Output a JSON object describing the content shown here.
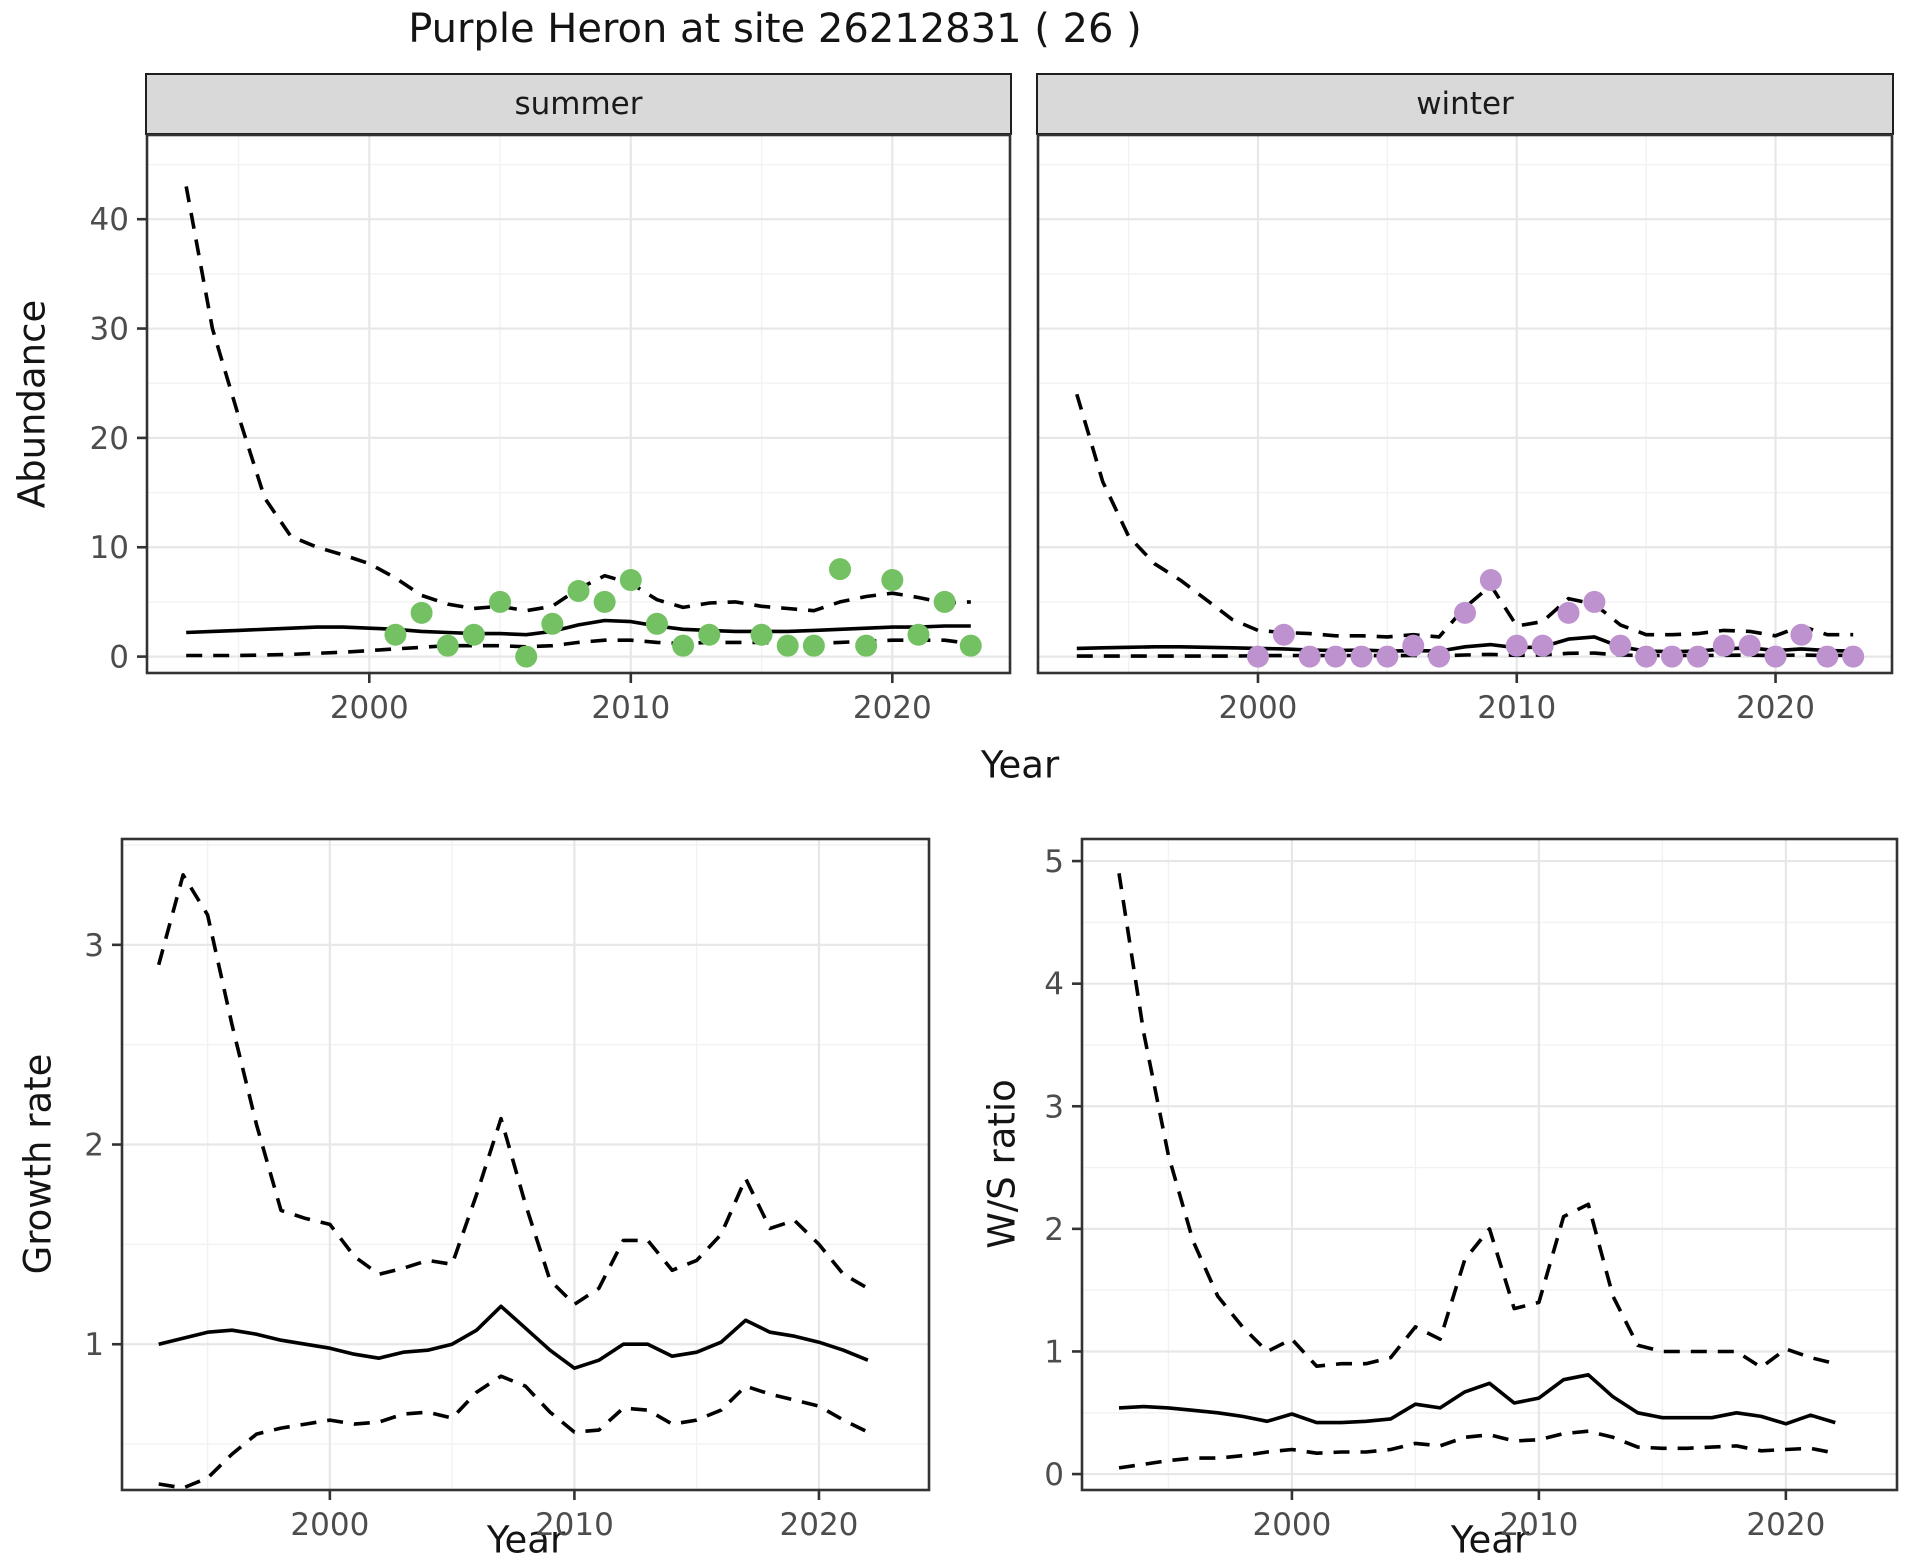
{
  "page": {
    "title": "Purple Heron at site 26212831 ( 26 )"
  },
  "colors": {
    "summer_points": "#74c163",
    "winter_points": "#bd92cf",
    "line": "#000000",
    "grid_major": "#e7e7e7",
    "grid_minor": "#f2f2f2",
    "strip_fill": "#d9d9d9",
    "panel_border": "#333333",
    "tick_color": "#333333",
    "tick_label": "#4d4d4d",
    "text": "#141414"
  },
  "facets": {
    "summer": "summer",
    "winter": "winter"
  },
  "axis_titles": {
    "abundance": "Abundance",
    "year_top": "Year",
    "growth_rate": "Growth rate",
    "year_bottom_left": "Year",
    "ws_ratio": "W/S ratio",
    "year_bottom_right": "Year"
  },
  "chart_data": [
    {
      "type": "line",
      "facet": "summer",
      "title": "summer",
      "xlabel": "Year",
      "ylabel": "Abundance",
      "xlim": [
        1991.5,
        2024.5
      ],
      "ylim": [
        -1.5,
        47.7
      ],
      "xticks": [
        2000,
        2010,
        2020
      ],
      "yticks": [
        0,
        10,
        20,
        30,
        40
      ],
      "grid": true,
      "x": [
        1993,
        1994,
        1995,
        1996,
        1997,
        1998,
        1999,
        2000,
        2001,
        2002,
        2003,
        2004,
        2005,
        2006,
        2007,
        2008,
        2009,
        2010,
        2011,
        2012,
        2013,
        2014,
        2015,
        2016,
        2017,
        2018,
        2019,
        2020,
        2021,
        2022,
        2023
      ],
      "series": [
        {
          "name": "upper-95ci",
          "style": "dashed",
          "values": [
            43,
            30,
            22,
            14.5,
            11,
            10,
            9.3,
            8.5,
            7.2,
            5.6,
            4.8,
            4.4,
            4.6,
            4.2,
            4.6,
            6.2,
            7.4,
            6.7,
            5.2,
            4.5,
            4.9,
            5.0,
            4.6,
            4.4,
            4.2,
            5.0,
            5.5,
            5.8,
            5.4,
            4.9,
            5.0
          ]
        },
        {
          "name": "median",
          "style": "solid",
          "values": [
            2.2,
            2.3,
            2.4,
            2.5,
            2.6,
            2.7,
            2.7,
            2.6,
            2.5,
            2.3,
            2.2,
            2.1,
            2.1,
            2.0,
            2.3,
            2.9,
            3.3,
            3.2,
            2.8,
            2.5,
            2.4,
            2.3,
            2.3,
            2.3,
            2.4,
            2.5,
            2.6,
            2.7,
            2.7,
            2.8,
            2.8
          ]
        },
        {
          "name": "lower-95ci",
          "style": "dashed",
          "values": [
            0.1,
            0.1,
            0.1,
            0.15,
            0.2,
            0.3,
            0.4,
            0.55,
            0.7,
            0.85,
            1.0,
            1.0,
            1.0,
            0.9,
            1.0,
            1.3,
            1.5,
            1.5,
            1.3,
            1.2,
            1.3,
            1.3,
            1.3,
            1.2,
            1.2,
            1.3,
            1.4,
            1.5,
            1.5,
            1.5,
            1.2
          ]
        }
      ],
      "points": {
        "name": "observed-abundance-summer",
        "color": "#74c163",
        "x": [
          2001,
          2002,
          2003,
          2004,
          2005,
          2006,
          2007,
          2008,
          2009,
          2010,
          2011,
          2012,
          2013,
          2015,
          2016,
          2017,
          2018,
          2019,
          2020,
          2021,
          2022,
          2023
        ],
        "y": [
          2,
          4,
          1,
          2,
          5,
          0,
          3,
          6,
          5,
          7,
          3,
          1,
          2,
          2,
          1,
          1,
          8,
          1,
          7,
          2,
          5,
          1
        ]
      }
    },
    {
      "type": "line",
      "facet": "winter",
      "title": "winter",
      "xlabel": "Year",
      "ylabel": "Abundance",
      "xlim": [
        1991.5,
        2024.5
      ],
      "ylim": [
        -1.5,
        47.7
      ],
      "xticks": [
        2000,
        2010,
        2020
      ],
      "yticks": [
        0,
        10,
        20,
        30,
        40
      ],
      "grid": true,
      "x": [
        1993,
        1994,
        1995,
        1996,
        1997,
        1998,
        1999,
        2000,
        2001,
        2002,
        2003,
        2004,
        2005,
        2006,
        2007,
        2008,
        2009,
        2010,
        2011,
        2012,
        2013,
        2014,
        2015,
        2016,
        2017,
        2018,
        2019,
        2020,
        2021,
        2022,
        2023
      ],
      "series": [
        {
          "name": "upper-95ci",
          "style": "dashed",
          "values": [
            24,
            16,
            11,
            8.5,
            7,
            5.2,
            3.4,
            2.4,
            2.2,
            2.1,
            1.9,
            1.9,
            1.8,
            2.0,
            1.8,
            4.5,
            6.5,
            2.8,
            3.2,
            5.3,
            4.8,
            2.9,
            2.0,
            2.0,
            2.1,
            2.4,
            2.3,
            1.9,
            2.8,
            2.0,
            2.0
          ]
        },
        {
          "name": "median",
          "style": "solid",
          "values": [
            0.75,
            0.8,
            0.85,
            0.9,
            0.9,
            0.85,
            0.8,
            0.75,
            0.7,
            0.6,
            0.55,
            0.6,
            0.5,
            0.55,
            0.5,
            0.9,
            1.1,
            0.8,
            0.9,
            1.6,
            1.8,
            0.9,
            0.5,
            0.45,
            0.5,
            0.7,
            0.8,
            0.55,
            0.7,
            0.55,
            0.5
          ]
        },
        {
          "name": "lower-95ci",
          "style": "dashed",
          "values": [
            0.05,
            0.05,
            0.05,
            0.05,
            0.05,
            0.05,
            0.05,
            0.08,
            0.1,
            0.1,
            0.1,
            0.1,
            0.08,
            0.1,
            0.08,
            0.15,
            0.2,
            0.12,
            0.15,
            0.3,
            0.32,
            0.15,
            0.1,
            0.1,
            0.1,
            0.12,
            0.13,
            0.1,
            0.15,
            0.1,
            0.13
          ]
        }
      ],
      "points": {
        "name": "observed-abundance-winter",
        "color": "#bd92cf",
        "x": [
          2000,
          2001,
          2002,
          2003,
          2004,
          2005,
          2006,
          2007,
          2008,
          2009,
          2010,
          2011,
          2012,
          2013,
          2014,
          2015,
          2016,
          2017,
          2018,
          2019,
          2020,
          2021,
          2022,
          2023
        ],
        "y": [
          0,
          2,
          0,
          0,
          0,
          0,
          1,
          0,
          4,
          7,
          1,
          1,
          4,
          5,
          1,
          0,
          0,
          0,
          1,
          1,
          0,
          2,
          0,
          0
        ]
      }
    },
    {
      "type": "line",
      "facet": null,
      "title": "Growth rate",
      "xlabel": "Year",
      "ylabel": "Growth rate",
      "xlim": [
        1991.5,
        2024.5
      ],
      "ylim": [
        0.27,
        3.53
      ],
      "xticks": [
        2000,
        2010,
        2020
      ],
      "yticks": [
        1,
        2,
        3
      ],
      "grid": true,
      "x": [
        1993,
        1994,
        1995,
        1996,
        1997,
        1998,
        1999,
        2000,
        2001,
        2002,
        2003,
        2004,
        2005,
        2006,
        2007,
        2008,
        2009,
        2010,
        2011,
        2012,
        2013,
        2014,
        2015,
        2016,
        2017,
        2018,
        2019,
        2020,
        2021,
        2022
      ],
      "series": [
        {
          "name": "upper-95ci",
          "style": "dashed",
          "values": [
            2.9,
            3.35,
            3.15,
            2.6,
            2.1,
            1.67,
            1.63,
            1.6,
            1.44,
            1.35,
            1.38,
            1.42,
            1.4,
            1.75,
            2.13,
            1.7,
            1.32,
            1.2,
            1.28,
            1.52,
            1.52,
            1.37,
            1.42,
            1.55,
            1.83,
            1.58,
            1.62,
            1.5,
            1.35,
            1.28
          ]
        },
        {
          "name": "median",
          "style": "solid",
          "values": [
            1.0,
            1.03,
            1.06,
            1.07,
            1.05,
            1.02,
            1.0,
            0.98,
            0.95,
            0.93,
            0.96,
            0.97,
            1.0,
            1.07,
            1.19,
            1.08,
            0.97,
            0.88,
            0.92,
            1.0,
            1.0,
            0.94,
            0.96,
            1.01,
            1.12,
            1.06,
            1.04,
            1.01,
            0.97,
            0.92
          ]
        },
        {
          "name": "lower-95ci",
          "style": "dashed",
          "values": [
            0.3,
            0.28,
            0.33,
            0.45,
            0.55,
            0.58,
            0.6,
            0.62,
            0.6,
            0.61,
            0.65,
            0.66,
            0.63,
            0.76,
            0.84,
            0.79,
            0.66,
            0.56,
            0.57,
            0.68,
            0.67,
            0.6,
            0.62,
            0.67,
            0.79,
            0.75,
            0.72,
            0.69,
            0.62,
            0.56
          ]
        }
      ],
      "points": null
    },
    {
      "type": "line",
      "facet": null,
      "title": "W/S ratio",
      "xlabel": "Year",
      "ylabel": "W/S ratio",
      "xlim": [
        1991.5,
        2024.5
      ],
      "ylim": [
        -0.13,
        5.18
      ],
      "xticks": [
        2000,
        2010,
        2020
      ],
      "yticks": [
        0,
        1,
        2,
        3,
        4,
        5
      ],
      "grid": true,
      "x": [
        1993,
        1994,
        1995,
        1996,
        1997,
        1998,
        1999,
        2000,
        2001,
        2002,
        2003,
        2004,
        2005,
        2006,
        2007,
        2008,
        2009,
        2010,
        2011,
        2012,
        2013,
        2014,
        2015,
        2016,
        2017,
        2018,
        2019,
        2020,
        2021,
        2022
      ],
      "series": [
        {
          "name": "upper-95ci",
          "style": "dashed",
          "values": [
            4.9,
            3.6,
            2.6,
            1.9,
            1.45,
            1.2,
            1.0,
            1.1,
            0.88,
            0.9,
            0.9,
            0.95,
            1.2,
            1.1,
            1.75,
            2.0,
            1.35,
            1.4,
            2.1,
            2.2,
            1.45,
            1.05,
            1.0,
            1.0,
            1.0,
            1.0,
            0.87,
            1.02,
            0.95,
            0.9
          ]
        },
        {
          "name": "median",
          "style": "solid",
          "values": [
            0.54,
            0.55,
            0.54,
            0.52,
            0.5,
            0.47,
            0.43,
            0.49,
            0.42,
            0.42,
            0.43,
            0.45,
            0.57,
            0.54,
            0.67,
            0.74,
            0.58,
            0.62,
            0.77,
            0.81,
            0.63,
            0.5,
            0.46,
            0.46,
            0.46,
            0.5,
            0.47,
            0.41,
            0.48,
            0.42
          ]
        },
        {
          "name": "lower-95ci",
          "style": "dashed",
          "values": [
            0.05,
            0.08,
            0.11,
            0.13,
            0.13,
            0.15,
            0.18,
            0.2,
            0.17,
            0.18,
            0.18,
            0.2,
            0.25,
            0.23,
            0.3,
            0.32,
            0.27,
            0.28,
            0.33,
            0.35,
            0.3,
            0.22,
            0.21,
            0.21,
            0.22,
            0.23,
            0.19,
            0.2,
            0.21,
            0.17
          ]
        }
      ],
      "points": null
    }
  ]
}
